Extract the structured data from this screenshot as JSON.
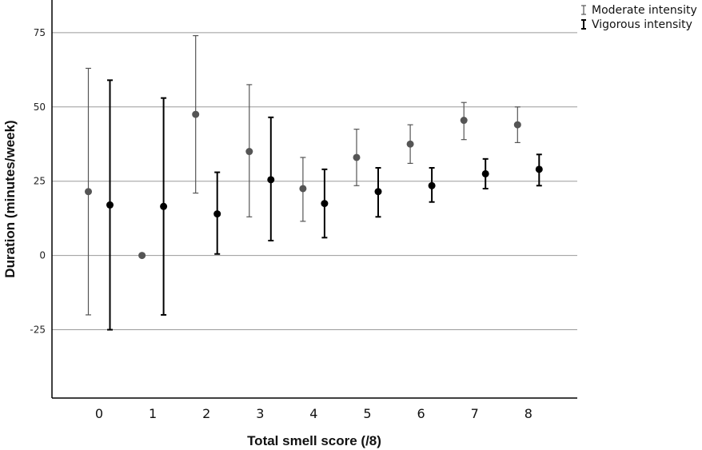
{
  "chart_data": {
    "type": "scatter",
    "xlabel": "Total smell score (/8)",
    "ylabel": "Duration (minutes/week)",
    "categories": [
      "0",
      "1",
      "2",
      "3",
      "4",
      "5",
      "6",
      "7",
      "8"
    ],
    "yticks": [
      -25,
      0,
      25,
      50,
      75
    ],
    "ylim": [
      -48,
      86
    ],
    "grid": true,
    "legend_position": "top-right",
    "series": [
      {
        "name": "Moderate intensity",
        "color": "#555555",
        "points": [
          {
            "x": "0",
            "y": 21.5,
            "lo": -20,
            "hi": 63
          },
          {
            "x": "1",
            "y": 0,
            "lo": null,
            "hi": null
          },
          {
            "x": "2",
            "y": 47.5,
            "lo": 21,
            "hi": 74
          },
          {
            "x": "3",
            "y": 35,
            "lo": 13,
            "hi": 57.5
          },
          {
            "x": "4",
            "y": 22.5,
            "lo": 11.5,
            "hi": 33
          },
          {
            "x": "5",
            "y": 33,
            "lo": 23.5,
            "hi": 42.5
          },
          {
            "x": "6",
            "y": 37.5,
            "lo": 31,
            "hi": 44
          },
          {
            "x": "7",
            "y": 45.5,
            "lo": 39,
            "hi": 51.5
          },
          {
            "x": "8",
            "y": 44,
            "lo": 38,
            "hi": 50
          }
        ]
      },
      {
        "name": "Vigorous intensity",
        "color": "#000000",
        "points": [
          {
            "x": "0",
            "y": 17,
            "lo": -25,
            "hi": 59
          },
          {
            "x": "1",
            "y": 16.5,
            "lo": -20,
            "hi": 53
          },
          {
            "x": "2",
            "y": 14,
            "lo": 0.5,
            "hi": 28
          },
          {
            "x": "3",
            "y": 25.5,
            "lo": 5,
            "hi": 46.5
          },
          {
            "x": "4",
            "y": 17.5,
            "lo": 6,
            "hi": 29
          },
          {
            "x": "5",
            "y": 21.5,
            "lo": 13,
            "hi": 29.5
          },
          {
            "x": "6",
            "y": 23.5,
            "lo": 18,
            "hi": 29.5
          },
          {
            "x": "7",
            "y": 27.5,
            "lo": 22.5,
            "hi": 32.5
          },
          {
            "x": "8",
            "y": 29,
            "lo": 23.5,
            "hi": 34
          }
        ]
      }
    ]
  }
}
